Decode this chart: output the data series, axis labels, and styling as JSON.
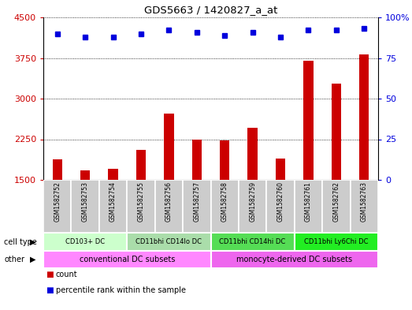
{
  "title": "GDS5663 / 1420827_a_at",
  "samples": [
    "GSM1582752",
    "GSM1582753",
    "GSM1582754",
    "GSM1582755",
    "GSM1582756",
    "GSM1582757",
    "GSM1582758",
    "GSM1582759",
    "GSM1582760",
    "GSM1582761",
    "GSM1582762",
    "GSM1582763"
  ],
  "counts": [
    1880,
    1670,
    1700,
    2060,
    2720,
    2240,
    2230,
    2460,
    1900,
    3700,
    3280,
    3820
  ],
  "percentiles": [
    90,
    88,
    88,
    90,
    92,
    91,
    89,
    91,
    88,
    92,
    92,
    93
  ],
  "ylim_left": [
    1500,
    4500
  ],
  "ylim_right": [
    0,
    100
  ],
  "yticks_left": [
    1500,
    2250,
    3000,
    3750,
    4500
  ],
  "yticks_right": [
    0,
    25,
    50,
    75,
    100
  ],
  "cell_type_labels": [
    {
      "text": "CD103+ DC",
      "start": 0,
      "end": 2,
      "color": "#ccffcc"
    },
    {
      "text": "CD11bhi CD14lo DC",
      "start": 3,
      "end": 5,
      "color": "#aaddaa"
    },
    {
      "text": "CD11bhi CD14hi DC",
      "start": 6,
      "end": 8,
      "color": "#55dd55"
    },
    {
      "text": "CD11bhi Ly6Chi DC",
      "start": 9,
      "end": 11,
      "color": "#22ee22"
    }
  ],
  "other_labels": [
    {
      "text": "conventional DC subsets",
      "start": 0,
      "end": 5,
      "color": "#ff88ff"
    },
    {
      "text": "monocyte-derived DC subsets",
      "start": 6,
      "end": 11,
      "color": "#ee66ee"
    }
  ],
  "bar_color": "#cc0000",
  "dot_color": "#0000dd",
  "sample_bg_color": "#cccccc",
  "left_label_color": "#cc0000",
  "right_label_color": "#0000dd",
  "fig_width": 5.23,
  "fig_height": 3.93,
  "fig_dpi": 100
}
